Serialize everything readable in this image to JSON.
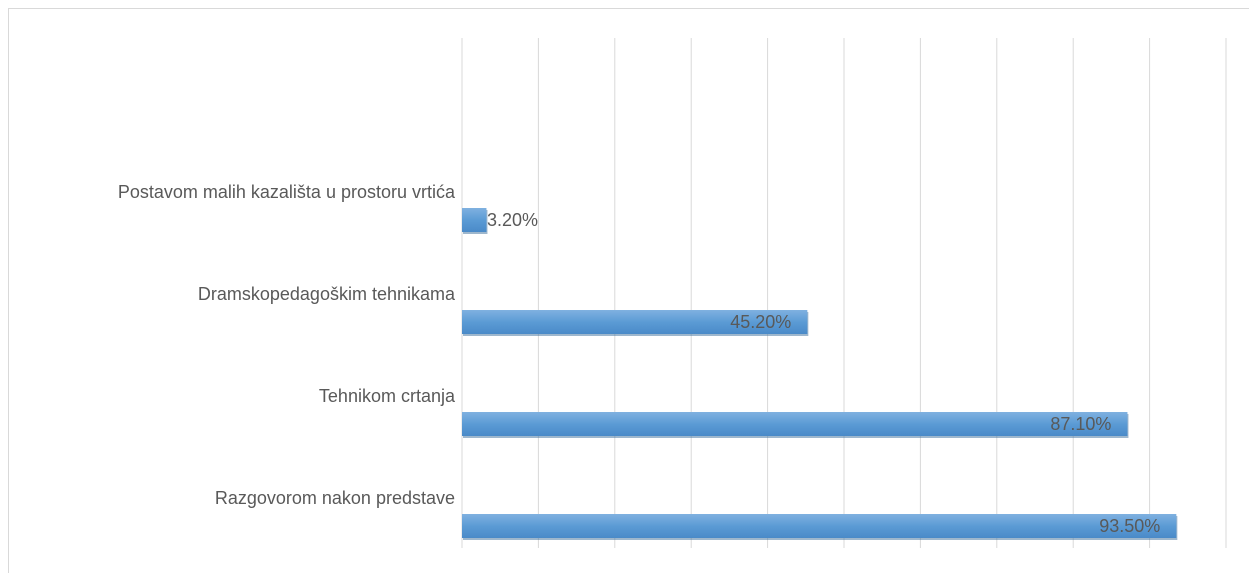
{
  "chart_data": {
    "type": "hbar",
    "categories": [
      "Postavom malih kazališta u prostoru vrtića",
      "Dramskopedagoškim tehnikama",
      "Tehnikom crtanja",
      "Razgovorom nakon predstave"
    ],
    "values": [
      3.2,
      45.2,
      87.1,
      93.5
    ],
    "value_labels": [
      "3.20%",
      "45.20%",
      "87.10%",
      "93.50%"
    ],
    "color": "#5b9bd5",
    "xlim": [
      0,
      100
    ],
    "xticks": [
      0,
      10,
      20,
      30,
      40,
      50,
      60,
      70,
      80,
      90,
      100
    ],
    "grid": true
  }
}
